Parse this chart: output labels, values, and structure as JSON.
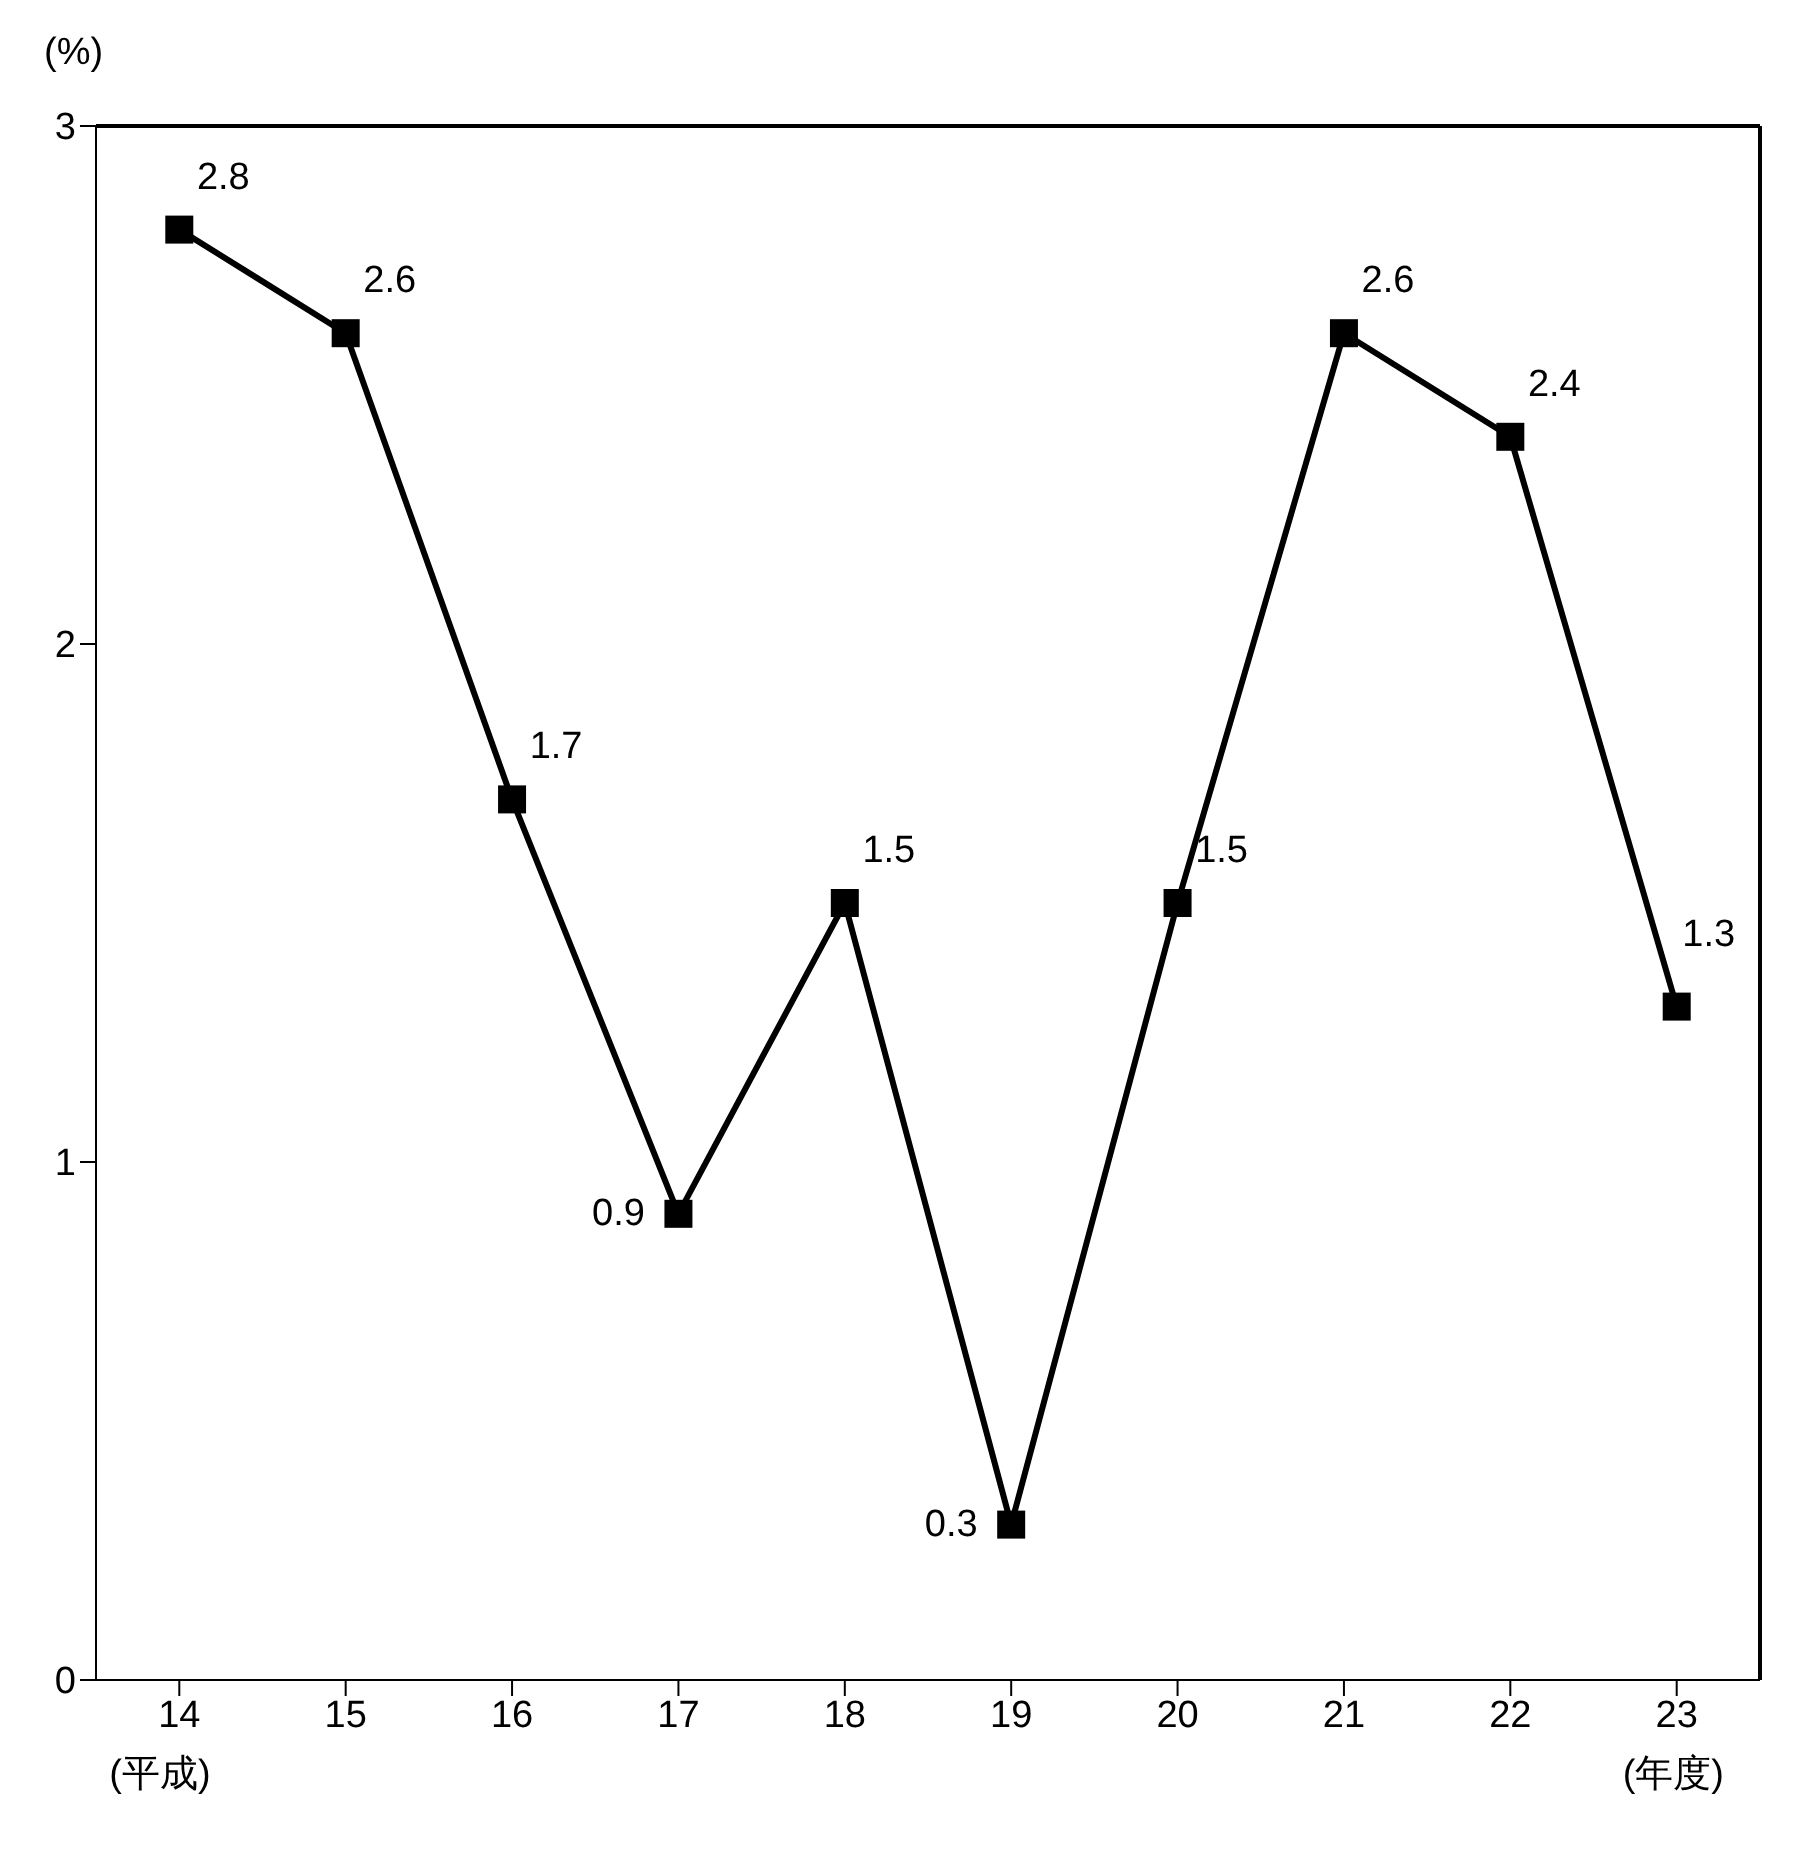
{
  "chart_data": {
    "type": "line",
    "ylabel": "(%)",
    "categories": [
      "14",
      "15",
      "16",
      "17",
      "18",
      "19",
      "20",
      "21",
      "22",
      "23"
    ],
    "series": [
      {
        "color": "#000000",
        "values": [
          2.8,
          2.6,
          1.7,
          0.9,
          1.5,
          0.3,
          1.5,
          2.6,
          2.4,
          1.3
        ]
      }
    ],
    "ylim": [
      0,
      3
    ],
    "yticks": [
      0,
      1,
      2,
      3
    ],
    "annotations": [
      "(平成)",
      "(年度)"
    ],
    "data_labels": true,
    "marker": "square",
    "line_style": "solid",
    "grid": false,
    "legend": false
  }
}
